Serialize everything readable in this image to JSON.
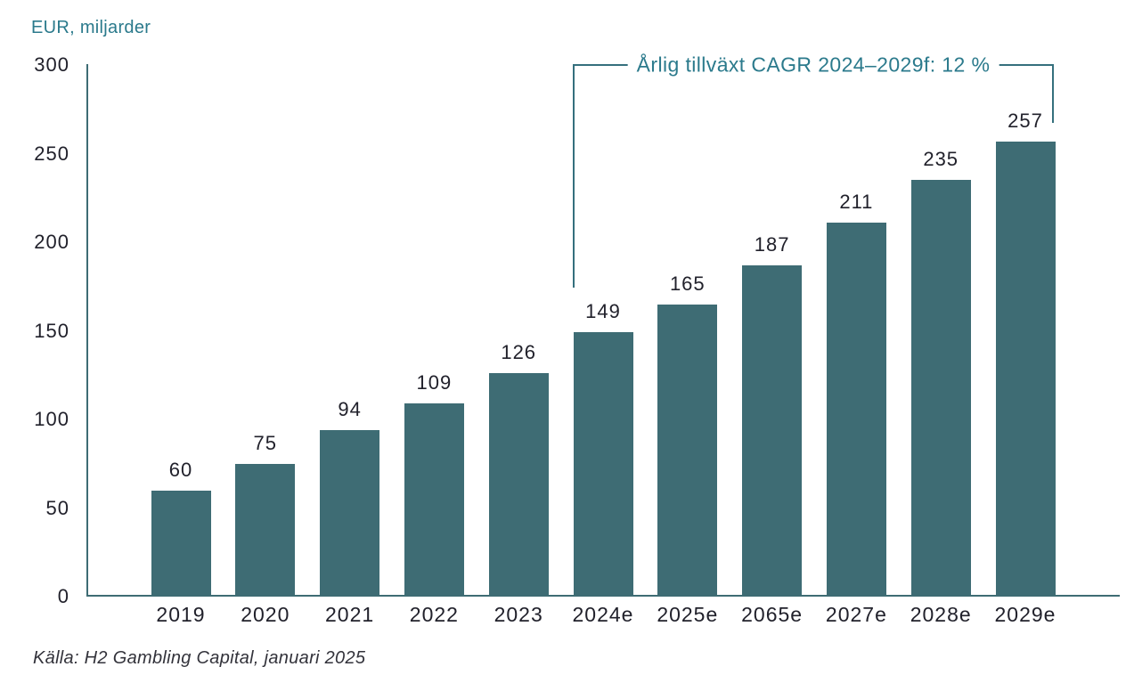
{
  "chart": {
    "unit_label": "EUR, miljarder",
    "annotation_label": "Årlig tillväxt CAGR 2024–2029f: 12 %",
    "source_caption": "Källa: H2 Gambling Capital, januari 2025"
  },
  "chart_data": {
    "type": "bar",
    "categories": [
      "2019",
      "2020",
      "2021",
      "2022",
      "2023",
      "2024e",
      "2025e",
      "2065e",
      "2027e",
      "2028e",
      "2029e"
    ],
    "values": [
      60,
      75,
      94,
      109,
      126,
      149,
      165,
      187,
      211,
      235,
      257
    ],
    "title": "",
    "xlabel": "",
    "ylabel": "EUR, miljarder",
    "ylim": [
      0,
      300
    ],
    "yticks": [
      0,
      50,
      100,
      150,
      200,
      250,
      300
    ],
    "grid": "off",
    "legend": "none",
    "bar_labels_shown": true,
    "annotation": "Årlig tillväxt CAGR 2024–2029f: 12 %",
    "annotation_span_categories": [
      "2024e",
      "2029e"
    ],
    "source": "Källa: H2 Gambling Capital, januari 2025",
    "colors": {
      "bar": "#3E6C74",
      "accent_text": "#2B7A8C",
      "dark_text": "#21212B",
      "axis": "#3E6C74",
      "bracket": "#35707D",
      "background": "#FFFFFF"
    }
  }
}
